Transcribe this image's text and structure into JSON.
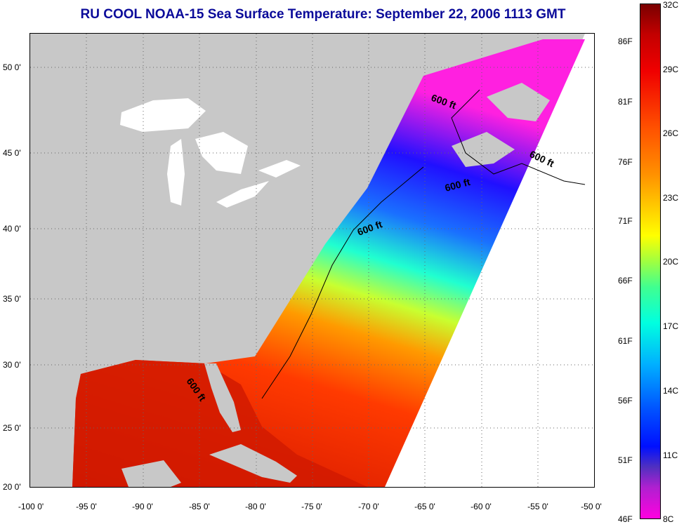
{
  "title": "RU COOL  NOAA-15  Sea Surface Temperature:  September 22, 2006 1113 GMT",
  "map": {
    "lat_labels": [
      "50 0'",
      "45 0'",
      "40 0'",
      "35 0'",
      "30 0'",
      "25 0'",
      "20 0'"
    ],
    "lon_labels": [
      "-100 0'",
      "-95 0'",
      "-90 0'",
      "-85 0'",
      "-80 0'",
      "-75 0'",
      "-70 0'",
      "-65 0'",
      "-60 0'",
      "-55 0'",
      "-50 0'"
    ],
    "contour_label": "600 ft",
    "colors": {
      "land": "#c8c8c8",
      "no_data": "#ffffff",
      "lakes": "#ffffff"
    }
  },
  "colorbar": {
    "celsius": [
      "32C",
      "29C",
      "26C",
      "23C",
      "20C",
      "17C",
      "14C",
      "11C",
      "8C"
    ],
    "fahrenheit": [
      "86F",
      "81F",
      "76F",
      "71F",
      "66F",
      "61F",
      "56F",
      "51F",
      "46F"
    ]
  }
}
